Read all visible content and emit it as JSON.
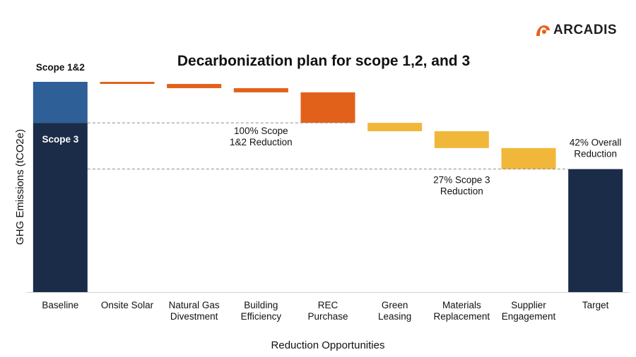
{
  "brand": {
    "logo_text": "ARCADIS",
    "logo_color": "#e8601c"
  },
  "chart_data": {
    "type": "waterfall",
    "title": "Decarbonization plan for scope 1,2, and 3",
    "xlabel": "Reduction Opportunities",
    "ylabel": "GHG Emissions (tCO2e)",
    "ylim": [
      0,
      100
    ],
    "grid": false,
    "categories": [
      "Baseline",
      "Onsite Solar",
      "Natural Gas Divestment",
      "Building Efficiency",
      "REC Purchase",
      "Green Leasing",
      "Materials Replacement",
      "Supplier Engagement",
      "Target"
    ],
    "category_lines": [
      [
        "Baseline"
      ],
      [
        "Onsite Solar"
      ],
      [
        "Natural Gas",
        "Divestment"
      ],
      [
        "Building",
        "Efficiency"
      ],
      [
        "REC",
        "Purchase"
      ],
      [
        "Green",
        "Leasing"
      ],
      [
        "Materials",
        "Replacement"
      ],
      [
        "Supplier",
        "Engagement"
      ],
      [
        "Target"
      ]
    ],
    "baseline": {
      "scope3": 80.5,
      "scope12": 19.5,
      "scope12_label": "Scope 1&2",
      "scope3_label": "Scope 3"
    },
    "steps": [
      {
        "category": "Onsite Solar",
        "reduction": 1,
        "scope": "1&2"
      },
      {
        "category": "Natural Gas Divestment",
        "reduction": 2,
        "scope": "1&2"
      },
      {
        "category": "Building Efficiency",
        "reduction": 2,
        "scope": "1&2"
      },
      {
        "category": "REC Purchase",
        "reduction": 14.5,
        "scope": "1&2"
      },
      {
        "category": "Green Leasing",
        "reduction": 4,
        "scope": "3"
      },
      {
        "category": "Materials Replacement",
        "reduction": 8,
        "scope": "3"
      },
      {
        "category": "Supplier Engagement",
        "reduction": 10,
        "scope": "3"
      }
    ],
    "target": 58.5,
    "annotations": {
      "scope12_reduction": [
        "100% Scope",
        "1&2 Reduction"
      ],
      "scope3_reduction": [
        "27% Scope 3",
        "Reduction"
      ],
      "overall_reduction": [
        "42% Overall",
        "Reduction"
      ]
    },
    "colors": {
      "scope12_baseline": "#2e5f96",
      "scope3_baseline": "#1b2c49",
      "scope12_reduction": "#e2611a",
      "scope3_reduction": "#f1b73a",
      "target": "#1b2c49"
    }
  }
}
